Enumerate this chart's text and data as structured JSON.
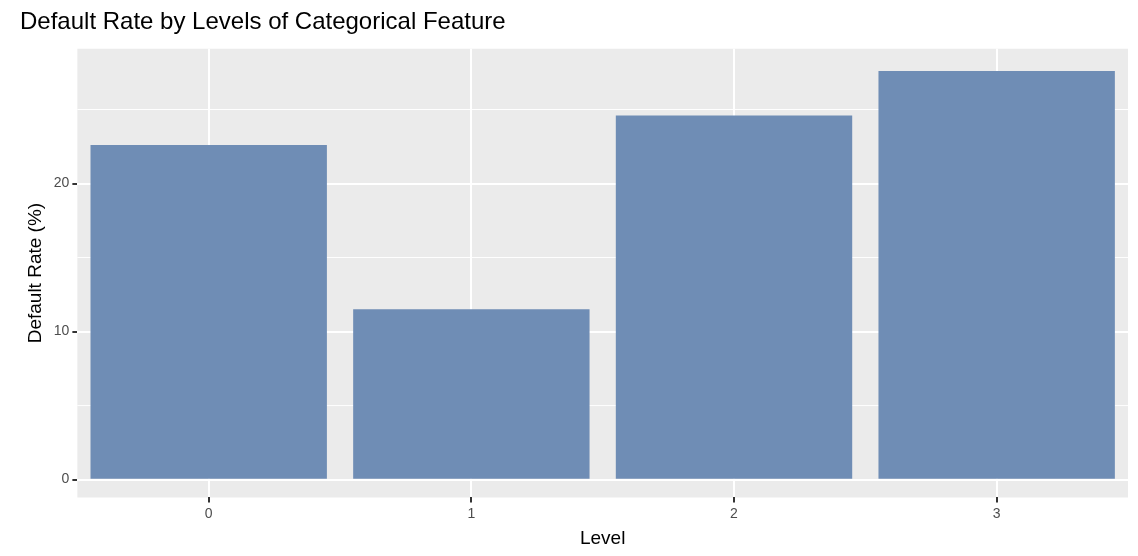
{
  "chart_data": {
    "type": "bar",
    "title": "Default Rate by Levels of Categorical Feature",
    "xlabel": "Level",
    "ylabel": "Default Rate (%)",
    "categories": [
      "0",
      "1",
      "2",
      "3"
    ],
    "values": [
      22.6,
      11.5,
      24.6,
      27.6
    ],
    "color": "#6f8db5",
    "ylim": [
      -1.2,
      29.1
    ],
    "yticks": [
      0,
      10,
      20
    ],
    "grid": true,
    "legend": false
  }
}
